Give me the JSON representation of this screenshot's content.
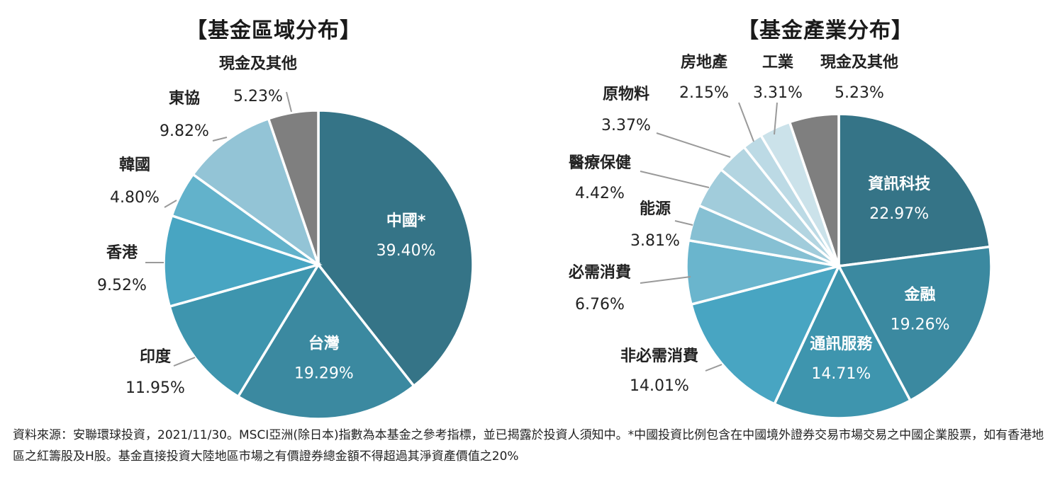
{
  "footnote": "資料來源：安聯環球投資，2021/11/30。MSCI亞洲(除日本)指數為本基金之參考指標，並已揭露於投資人須知中。*中國投資比例包含在中國境外證券交易市場交易之中國企業股票，如有香港地區之紅籌股及H股。基金直接投資大陸地區市場之有價證券總金額不得超過其淨資產價值之20%",
  "chart_data": [
    {
      "type": "pie",
      "title": "【基金區域分布】",
      "slices": [
        {
          "label": "中國*",
          "value": 39.4,
          "display": "39.40%",
          "color": "#357487",
          "label_inside": true
        },
        {
          "label": "台灣",
          "value": 19.29,
          "display": "19.29%",
          "color": "#3b89a0",
          "label_inside": true
        },
        {
          "label": "印度",
          "value": 11.95,
          "display": "11.95%",
          "color": "#3e95ae",
          "label_inside": false
        },
        {
          "label": "香港",
          "value": 9.52,
          "display": "9.52%",
          "color": "#48a5c2",
          "label_inside": false
        },
        {
          "label": "韓國",
          "value": 4.8,
          "display": "4.80%",
          "color": "#62b2cb",
          "label_inside": false
        },
        {
          "label": "東協",
          "value": 9.82,
          "display": "9.82%",
          "color": "#93c4d6",
          "label_inside": false
        },
        {
          "label": "現金及其他",
          "value": 5.23,
          "display": "5.23%",
          "color": "#7f7f7f",
          "label_inside": false
        }
      ]
    },
    {
      "type": "pie",
      "title": "【基金產業分布】",
      "slices": [
        {
          "label": "資訊科技",
          "value": 22.97,
          "display": "22.97%",
          "color": "#357487",
          "label_inside": true
        },
        {
          "label": "金融",
          "value": 19.26,
          "display": "19.26%",
          "color": "#3b89a0",
          "label_inside": true
        },
        {
          "label": "通訊服務",
          "value": 14.71,
          "display": "14.71%",
          "color": "#3e95ae",
          "label_inside": true
        },
        {
          "label": "非必需消費",
          "value": 14.01,
          "display": "14.01%",
          "color": "#48a5c2",
          "label_inside": false
        },
        {
          "label": "必需消費",
          "value": 6.76,
          "display": "6.76%",
          "color": "#6ab5cd",
          "label_inside": false
        },
        {
          "label": "能源",
          "value": 3.81,
          "display": "3.81%",
          "color": "#86c0d3",
          "label_inside": false
        },
        {
          "label": "醫療保健",
          "value": 4.42,
          "display": "4.42%",
          "color": "#a1ccdb",
          "label_inside": false
        },
        {
          "label": "原物料",
          "value": 3.37,
          "display": "3.37%",
          "color": "#b3d5e1",
          "label_inside": false
        },
        {
          "label": "房地產",
          "value": 2.15,
          "display": "2.15%",
          "color": "#bcdae5",
          "label_inside": false
        },
        {
          "label": "工業",
          "value": 3.31,
          "display": "3.31%",
          "color": "#cbe2ea",
          "label_inside": false
        },
        {
          "label": "現金及其他",
          "value": 5.23,
          "display": "5.23%",
          "color": "#7f7f7f",
          "label_inside": false
        }
      ]
    }
  ]
}
